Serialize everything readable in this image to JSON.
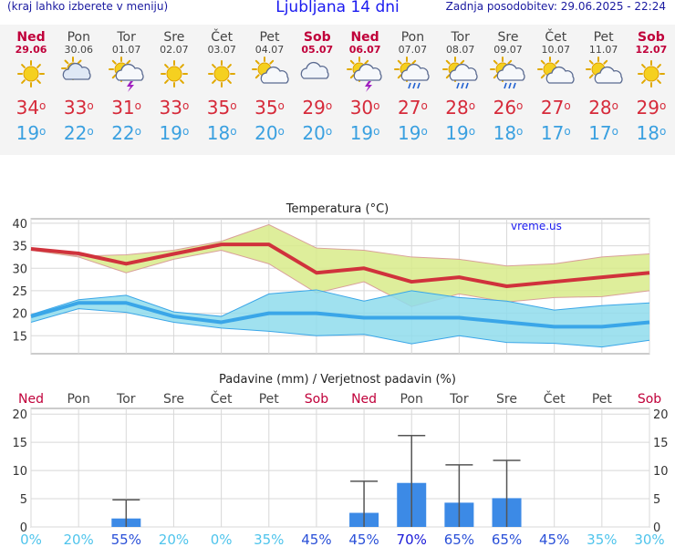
{
  "header": {
    "menu_hint": "(kraj lahko izberete v meniju)",
    "title": "Ljubljana 14 dni",
    "last_update": "Zadnja posodobitev: 29.06.2025 - 22:24"
  },
  "days": [
    {
      "name": "Ned",
      "date": "29.06",
      "icon": "sun-icon",
      "max": "34",
      "min": "19",
      "sunday": true
    },
    {
      "name": "Pon",
      "date": "30.06",
      "icon": "cloudy-icon",
      "max": "33",
      "min": "22",
      "sunday": false
    },
    {
      "name": "Tor",
      "date": "01.07",
      "icon": "sun-cloud-storm-icon",
      "max": "31",
      "min": "22",
      "sunday": false
    },
    {
      "name": "Sre",
      "date": "02.07",
      "icon": "sun-icon",
      "max": "33",
      "min": "19",
      "sunday": false
    },
    {
      "name": "Čet",
      "date": "03.07",
      "icon": "sun-icon",
      "max": "35",
      "min": "18",
      "sunday": false
    },
    {
      "name": "Pet",
      "date": "04.07",
      "icon": "sun-cloud-icon",
      "max": "35",
      "min": "20",
      "sunday": false
    },
    {
      "name": "Sob",
      "date": "05.07",
      "icon": "cloud-icon",
      "max": "29",
      "min": "20",
      "sunday": true
    },
    {
      "name": "Ned",
      "date": "06.07",
      "icon": "sun-cloud-storm-icon",
      "max": "30",
      "min": "19",
      "sunday": true
    },
    {
      "name": "Pon",
      "date": "07.07",
      "icon": "sun-cloud-rain-icon",
      "max": "27",
      "min": "19",
      "sunday": false
    },
    {
      "name": "Tor",
      "date": "08.07",
      "icon": "sun-cloud-rain-icon",
      "max": "28",
      "min": "19",
      "sunday": false
    },
    {
      "name": "Sre",
      "date": "09.07",
      "icon": "sun-cloud-rain-icon",
      "max": "26",
      "min": "18",
      "sunday": false
    },
    {
      "name": "Čet",
      "date": "10.07",
      "icon": "sun-cloud-icon",
      "max": "27",
      "min": "17",
      "sunday": false
    },
    {
      "name": "Pet",
      "date": "11.07",
      "icon": "sun-cloud-icon",
      "max": "28",
      "min": "17",
      "sunday": false
    },
    {
      "name": "Sob",
      "date": "12.07",
      "icon": "sun-icon",
      "max": "29",
      "min": "18",
      "sunday": true
    }
  ],
  "degree_symbol": "o",
  "chart_data": [
    {
      "type": "line",
      "title": "Temperatura (°C)",
      "watermark": "vreme.us",
      "ylim": [
        11,
        41
      ],
      "yticks": [
        15,
        20,
        25,
        30,
        35,
        40
      ],
      "grid": true,
      "series": [
        {
          "name": "max",
          "color": "#d0323c",
          "values": [
            34.3,
            33.3,
            31.0,
            33.2,
            35.3,
            35.3,
            29.0,
            30.0,
            27.0,
            28.0,
            26.0,
            27.0,
            28.0,
            29.0
          ],
          "band_upper": [
            34.5,
            32.7,
            33.0,
            34.0,
            36.0,
            39.7,
            34.5,
            34.0,
            32.5,
            32.0,
            30.5,
            31.0,
            32.5,
            33.2
          ],
          "band_lower": [
            34.0,
            32.5,
            29.0,
            32.0,
            34.0,
            31.0,
            24.5,
            27.0,
            21.5,
            24.3,
            22.5,
            23.5,
            23.7,
            25.0
          ]
        },
        {
          "name": "min",
          "color": "#3aa6e8",
          "values": [
            19.3,
            22.3,
            22.3,
            19.3,
            18.0,
            20.0,
            20.0,
            19.0,
            19.0,
            19.0,
            18.0,
            17.0,
            17.0,
            18.0
          ],
          "band_upper": [
            19.7,
            23.0,
            24.0,
            20.3,
            19.3,
            24.3,
            25.2,
            22.7,
            25.0,
            23.5,
            22.7,
            20.7,
            21.7,
            22.3
          ],
          "band_lower": [
            18.0,
            21.0,
            20.2,
            18.0,
            16.7,
            16.0,
            15.0,
            15.3,
            13.2,
            15.0,
            13.5,
            13.3,
            12.5,
            14.0
          ]
        }
      ]
    },
    {
      "type": "bar",
      "title": "Padavine (mm) / Verjetnost padavin (%)",
      "categories": [
        "Ned",
        "Pon",
        "Tor",
        "Sre",
        "Čet",
        "Pet",
        "Sob",
        "Ned",
        "Pon",
        "Tor",
        "Sre",
        "Čet",
        "Pet",
        "Sob"
      ],
      "sunday_flags": [
        true,
        false,
        false,
        false,
        false,
        false,
        true,
        true,
        false,
        false,
        false,
        false,
        false,
        true
      ],
      "ylim": [
        0,
        21
      ],
      "yticks": [
        0,
        5,
        10,
        15,
        20
      ],
      "grid": true,
      "bar_color": "#3c8ae6",
      "values": [
        0,
        0,
        1.5,
        0,
        0,
        0,
        0,
        2.5,
        7.8,
        4.3,
        5.1,
        0,
        0,
        0
      ],
      "error_upper": [
        0,
        0,
        4.8,
        0,
        0,
        0,
        0,
        8.1,
        16.2,
        11.0,
        11.8,
        0,
        0,
        0
      ],
      "probabilities": [
        "0%",
        "20%",
        "55%",
        "20%",
        "0%",
        "35%",
        "45%",
        "45%",
        "70%",
        "65%",
        "65%",
        "45%",
        "35%",
        "30%"
      ],
      "probability_values": [
        0,
        20,
        55,
        20,
        0,
        35,
        45,
        45,
        70,
        65,
        65,
        45,
        35,
        30
      ]
    }
  ]
}
